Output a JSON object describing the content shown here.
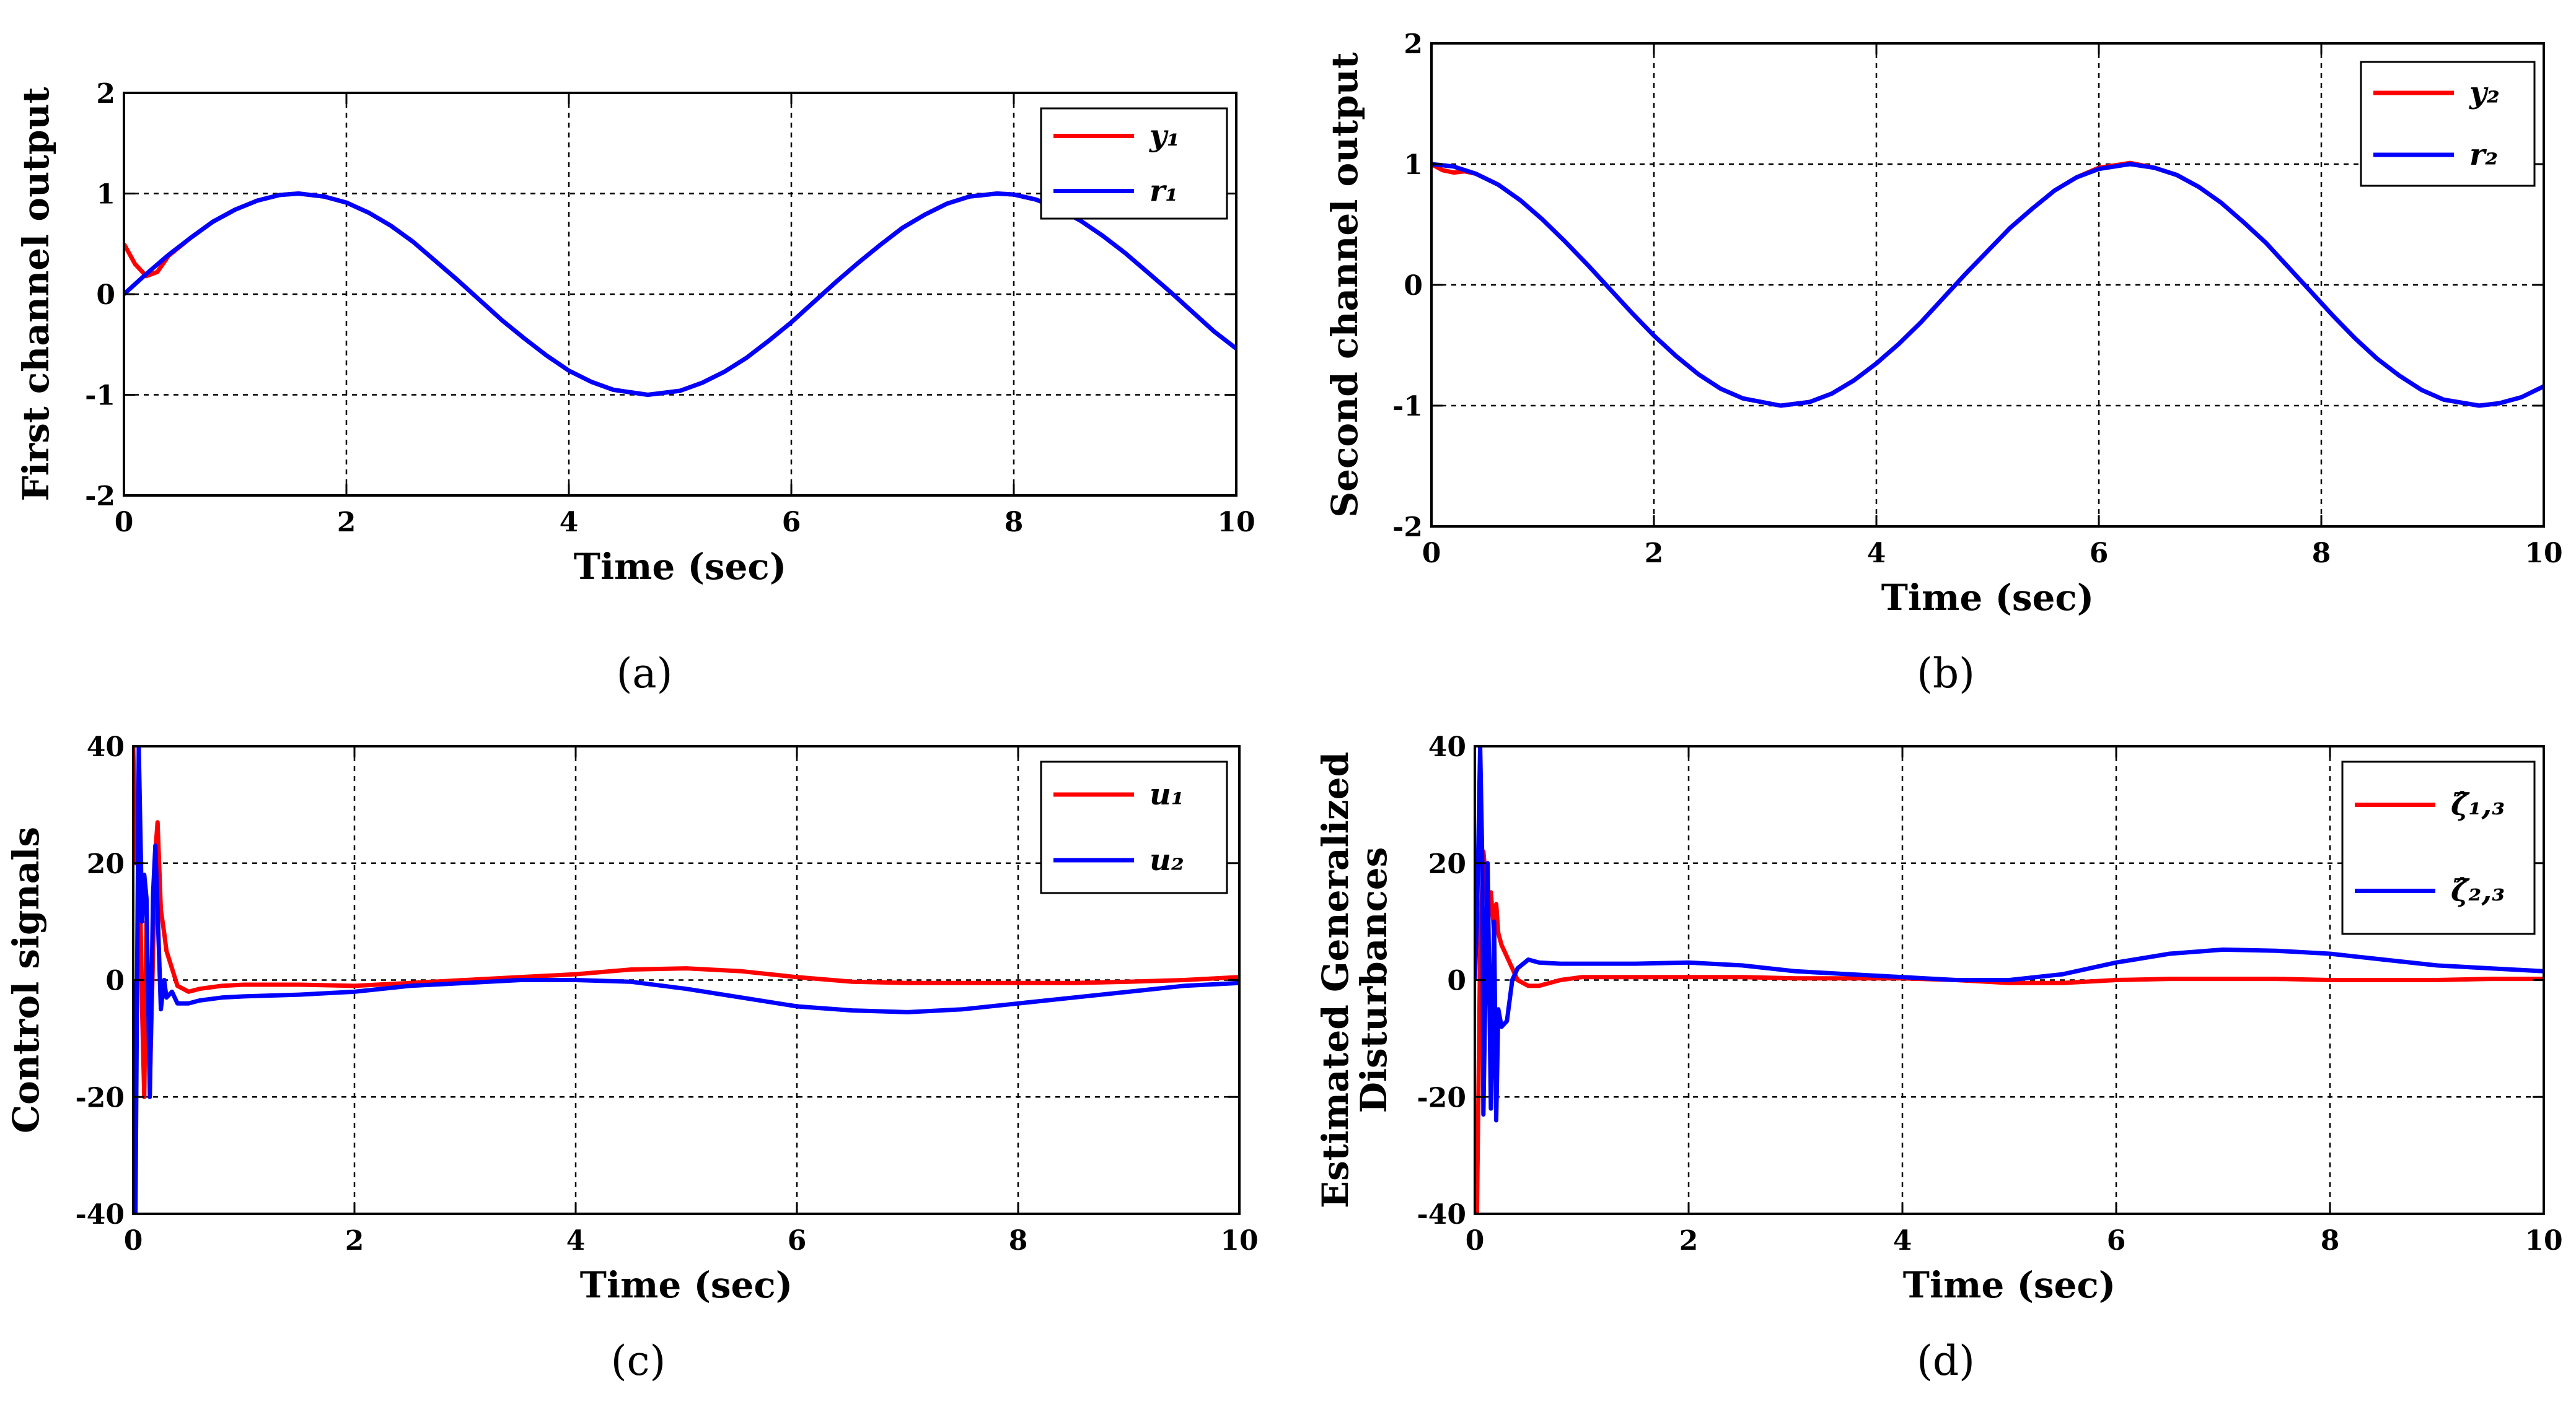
{
  "chart_data": [
    {
      "type": "line",
      "caption": "(a)",
      "xlabel": "Time (sec)",
      "ylabel": "First channel output",
      "xlim": [
        0,
        10
      ],
      "ylim": [
        -2,
        2
      ],
      "xticks": [
        "0",
        "2",
        "4",
        "6",
        "8",
        "10"
      ],
      "yticks": [
        "-2",
        "-1",
        "0",
        "1",
        "2"
      ],
      "grid": true,
      "legend_position": "top-right",
      "series": [
        {
          "name": "y₁",
          "color": "#ff0000",
          "x": [
            0,
            0.1,
            0.2,
            0.3,
            0.4,
            0.6,
            0.8,
            1.0,
            1.2,
            1.4,
            1.57,
            1.8,
            2.0,
            2.2,
            2.4,
            2.6,
            2.8,
            3.0,
            3.2,
            3.4,
            3.6,
            3.8,
            4.0,
            4.2,
            4.4,
            4.71,
            5.0,
            5.2,
            5.4,
            5.6,
            5.8,
            6.0,
            6.2,
            6.4,
            6.6,
            6.8,
            7.0,
            7.2,
            7.4,
            7.6,
            7.85,
            8.0,
            8.2,
            8.4,
            8.6,
            8.8,
            9.0,
            9.2,
            9.4,
            9.6,
            9.8,
            10.0
          ],
          "y": [
            0.5,
            0.3,
            0.18,
            0.22,
            0.38,
            0.56,
            0.72,
            0.84,
            0.93,
            0.985,
            1.0,
            0.97,
            0.91,
            0.81,
            0.68,
            0.52,
            0.33,
            0.14,
            -0.06,
            -0.26,
            -0.44,
            -0.61,
            -0.76,
            -0.87,
            -0.95,
            -1.0,
            -0.96,
            -0.88,
            -0.77,
            -0.63,
            -0.46,
            -0.28,
            -0.08,
            0.12,
            0.31,
            0.49,
            0.66,
            0.79,
            0.9,
            0.97,
            1.0,
            0.99,
            0.94,
            0.85,
            0.73,
            0.58,
            0.41,
            0.22,
            0.03,
            -0.17,
            -0.37,
            -0.54
          ]
        },
        {
          "name": "r₁",
          "color": "#0000ff",
          "x": [
            0,
            0.2,
            0.4,
            0.6,
            0.8,
            1.0,
            1.2,
            1.4,
            1.57,
            1.8,
            2.0,
            2.2,
            2.4,
            2.6,
            2.8,
            3.0,
            3.2,
            3.4,
            3.6,
            3.8,
            4.0,
            4.2,
            4.4,
            4.71,
            5.0,
            5.2,
            5.4,
            5.6,
            5.8,
            6.0,
            6.2,
            6.4,
            6.6,
            6.8,
            7.0,
            7.2,
            7.4,
            7.6,
            7.85,
            8.0,
            8.2,
            8.4,
            8.6,
            8.8,
            9.0,
            9.2,
            9.4,
            9.6,
            9.8,
            10.0
          ],
          "y": [
            0.0,
            0.2,
            0.39,
            0.56,
            0.72,
            0.84,
            0.93,
            0.985,
            1.0,
            0.97,
            0.91,
            0.81,
            0.68,
            0.52,
            0.33,
            0.14,
            -0.06,
            -0.26,
            -0.44,
            -0.61,
            -0.76,
            -0.87,
            -0.95,
            -1.0,
            -0.96,
            -0.88,
            -0.77,
            -0.63,
            -0.46,
            -0.28,
            -0.08,
            0.12,
            0.31,
            0.49,
            0.66,
            0.79,
            0.9,
            0.97,
            1.0,
            0.99,
            0.94,
            0.85,
            0.73,
            0.58,
            0.41,
            0.22,
            0.03,
            -0.17,
            -0.37,
            -0.54
          ]
        }
      ]
    },
    {
      "type": "line",
      "caption": "(b)",
      "xlabel": "Time (sec)",
      "ylabel": "Second channel output",
      "xlim": [
        0,
        10
      ],
      "ylim": [
        -2,
        2
      ],
      "xticks": [
        "0",
        "2",
        "4",
        "6",
        "8",
        "10"
      ],
      "yticks": [
        "-2",
        "-1",
        "0",
        "1",
        "2"
      ],
      "grid": true,
      "legend_position": "top-right",
      "series": [
        {
          "name": "y₂",
          "color": "#ff0000",
          "x": [
            0,
            0.1,
            0.2,
            0.3,
            0.4,
            0.6,
            0.8,
            1.0,
            1.2,
            1.4,
            1.6,
            1.8,
            2.0,
            2.2,
            2.4,
            2.6,
            2.8,
            3.14,
            3.4,
            3.6,
            3.8,
            4.0,
            4.2,
            4.4,
            4.6,
            4.8,
            5.0,
            5.2,
            5.4,
            5.6,
            5.8,
            6.0,
            6.28,
            6.5,
            6.7,
            6.9,
            7.1,
            7.3,
            7.5,
            7.7,
            7.9,
            8.1,
            8.3,
            8.5,
            8.7,
            8.9,
            9.1,
            9.42,
            9.6,
            9.8,
            10.0
          ],
          "y": [
            1.0,
            0.95,
            0.93,
            0.94,
            0.92,
            0.83,
            0.7,
            0.54,
            0.36,
            0.17,
            -0.03,
            -0.23,
            -0.42,
            -0.59,
            -0.74,
            -0.86,
            -0.94,
            -1.0,
            -0.97,
            -0.9,
            -0.79,
            -0.65,
            -0.49,
            -0.31,
            -0.11,
            0.09,
            0.28,
            0.47,
            0.63,
            0.78,
            0.89,
            0.97,
            1.01,
            0.97,
            0.91,
            0.81,
            0.68,
            0.52,
            0.35,
            0.15,
            -0.05,
            -0.25,
            -0.44,
            -0.61,
            -0.75,
            -0.87,
            -0.95,
            -1.0,
            -0.98,
            -0.93,
            -0.84
          ]
        },
        {
          "name": "r₂",
          "color": "#0000ff",
          "x": [
            0,
            0.2,
            0.4,
            0.6,
            0.8,
            1.0,
            1.2,
            1.4,
            1.6,
            1.8,
            2.0,
            2.2,
            2.4,
            2.6,
            2.8,
            3.14,
            3.4,
            3.6,
            3.8,
            4.0,
            4.2,
            4.4,
            4.6,
            4.8,
            5.0,
            5.2,
            5.4,
            5.6,
            5.8,
            6.0,
            6.28,
            6.5,
            6.7,
            6.9,
            7.1,
            7.3,
            7.5,
            7.7,
            7.9,
            8.1,
            8.3,
            8.5,
            8.7,
            8.9,
            9.1,
            9.42,
            9.6,
            9.8,
            10.0
          ],
          "y": [
            1.0,
            0.98,
            0.92,
            0.83,
            0.7,
            0.54,
            0.36,
            0.17,
            -0.03,
            -0.23,
            -0.42,
            -0.59,
            -0.74,
            -0.86,
            -0.94,
            -1.0,
            -0.97,
            -0.9,
            -0.79,
            -0.65,
            -0.49,
            -0.31,
            -0.11,
            0.09,
            0.28,
            0.47,
            0.63,
            0.78,
            0.89,
            0.96,
            1.0,
            0.97,
            0.91,
            0.81,
            0.68,
            0.52,
            0.35,
            0.15,
            -0.05,
            -0.25,
            -0.44,
            -0.61,
            -0.75,
            -0.87,
            -0.95,
            -1.0,
            -0.98,
            -0.93,
            -0.84
          ]
        }
      ]
    },
    {
      "type": "line",
      "caption": "(c)",
      "xlabel": "Time (sec)",
      "ylabel": "Control signals",
      "xlim": [
        0,
        10
      ],
      "ylim": [
        -40,
        40
      ],
      "xticks": [
        "0",
        "2",
        "4",
        "6",
        "8",
        "10"
      ],
      "yticks": [
        "-40",
        "-20",
        "0",
        "20",
        "40"
      ],
      "grid": true,
      "legend_position": "top-right",
      "series": [
        {
          "name": "u₁",
          "color": "#ff0000",
          "x": [
            0,
            0.02,
            0.05,
            0.08,
            0.1,
            0.12,
            0.15,
            0.18,
            0.2,
            0.22,
            0.25,
            0.28,
            0.3,
            0.35,
            0.4,
            0.5,
            0.6,
            0.8,
            1.0,
            1.5,
            2.0,
            2.5,
            3.0,
            3.5,
            4.0,
            4.5,
            5.0,
            5.5,
            6.0,
            6.5,
            7.0,
            7.5,
            8.0,
            8.5,
            9.0,
            9.5,
            10.0
          ],
          "y": [
            40,
            20,
            28,
            -5,
            -20,
            10,
            -18,
            5,
            22,
            27,
            12,
            8,
            5,
            2,
            -1,
            -2,
            -1.5,
            -1,
            -0.8,
            -0.8,
            -1.0,
            -0.5,
            0.0,
            0.5,
            1.0,
            1.8,
            2.0,
            1.5,
            0.5,
            -0.3,
            -0.5,
            -0.5,
            -0.5,
            -0.5,
            -0.3,
            0.0,
            0.5
          ]
        },
        {
          "name": "u₂",
          "color": "#0000ff",
          "x": [
            0,
            0.02,
            0.05,
            0.08,
            0.1,
            0.12,
            0.15,
            0.18,
            0.2,
            0.22,
            0.25,
            0.28,
            0.3,
            0.35,
            0.4,
            0.5,
            0.6,
            0.8,
            1.0,
            1.5,
            2.0,
            2.5,
            3.0,
            3.5,
            4.0,
            4.5,
            5.0,
            5.5,
            6.0,
            6.5,
            7.0,
            7.5,
            8.0,
            8.5,
            9.0,
            9.5,
            10.0
          ],
          "y": [
            0,
            -40,
            40,
            10,
            18,
            14,
            -20,
            15,
            23,
            12,
            -5,
            0,
            -3,
            -2,
            -4,
            -4,
            -3.5,
            -3,
            -2.8,
            -2.5,
            -2.0,
            -1.0,
            -0.5,
            0.0,
            0.0,
            -0.3,
            -1.5,
            -3.0,
            -4.5,
            -5.2,
            -5.5,
            -5.0,
            -4.0,
            -3.0,
            -2.0,
            -1.0,
            -0.5
          ]
        }
      ]
    },
    {
      "type": "line",
      "caption": "(d)",
      "xlabel": "Time (sec)",
      "ylabel": [
        "Estimated Generalized",
        "Disturbances"
      ],
      "xlim": [
        0,
        10
      ],
      "ylim": [
        -40,
        40
      ],
      "xticks": [
        "0",
        "2",
        "4",
        "6",
        "8",
        "10"
      ],
      "yticks": [
        "-40",
        "-20",
        "0",
        "20",
        "40"
      ],
      "grid": true,
      "legend_position": "top-right",
      "series": [
        {
          "name": "ζ̂₁,₃",
          "color": "#ff0000",
          "x": [
            0,
            0.02,
            0.05,
            0.08,
            0.1,
            0.12,
            0.15,
            0.18,
            0.2,
            0.22,
            0.25,
            0.3,
            0.35,
            0.4,
            0.5,
            0.6,
            0.8,
            1.0,
            1.5,
            2.0,
            2.5,
            3.0,
            3.5,
            4.0,
            4.5,
            5.0,
            5.5,
            6.0,
            6.5,
            7.0,
            7.5,
            8.0,
            8.5,
            9.0,
            9.5,
            10.0
          ],
          "y": [
            -40,
            -40,
            5,
            22,
            18,
            10,
            15,
            8,
            13,
            8,
            6,
            4,
            2,
            0,
            -1,
            -1,
            0,
            0.5,
            0.5,
            0.5,
            0.5,
            0.3,
            0.3,
            0.3,
            0.0,
            -0.5,
            -0.5,
            0.0,
            0.2,
            0.2,
            0.2,
            0.0,
            0.0,
            0.0,
            0.2,
            0.2
          ]
        },
        {
          "name": "ζ̂₂,₃",
          "color": "#0000ff",
          "x": [
            0,
            0.02,
            0.05,
            0.07,
            0.08,
            0.1,
            0.12,
            0.15,
            0.18,
            0.2,
            0.22,
            0.25,
            0.3,
            0.35,
            0.4,
            0.5,
            0.6,
            0.8,
            1.0,
            1.5,
            2.0,
            2.5,
            3.0,
            3.5,
            4.0,
            4.5,
            5.0,
            5.5,
            6.0,
            6.5,
            7.0,
            7.5,
            8.0,
            8.5,
            9.0,
            9.5,
            10.0
          ],
          "y": [
            0,
            10,
            40,
            20,
            -23,
            0,
            20,
            -22,
            10,
            -24,
            -5,
            -8,
            -7,
            0,
            2,
            3.5,
            3.0,
            2.8,
            2.8,
            2.8,
            3.0,
            2.5,
            1.5,
            1.0,
            0.5,
            0.0,
            0.0,
            1.0,
            3.0,
            4.5,
            5.2,
            5.0,
            4.5,
            3.5,
            2.5,
            2.0,
            1.5
          ]
        }
      ]
    }
  ]
}
